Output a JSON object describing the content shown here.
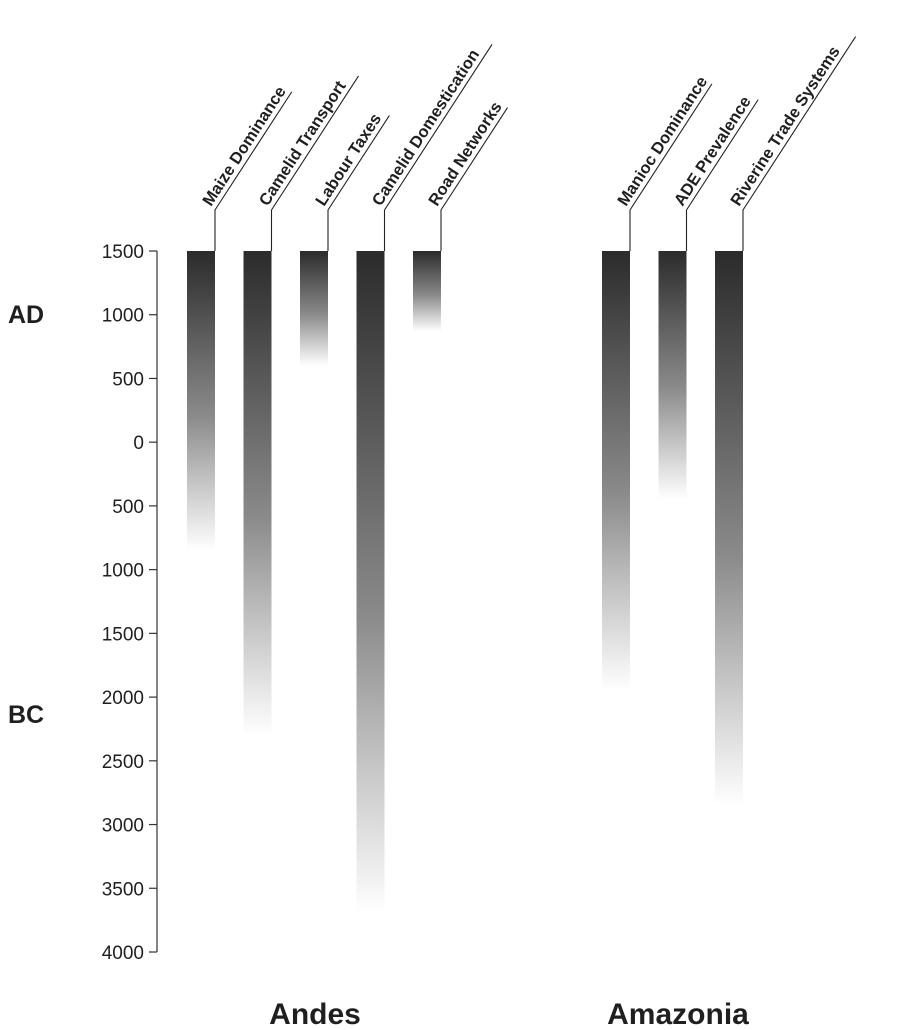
{
  "chart_data": {
    "type": "bar",
    "title": "",
    "ylabel": "",
    "ylim": [
      -4000,
      1500
    ],
    "y_ticks": [
      1500,
      1000,
      500,
      0,
      -500,
      -1000,
      -1500,
      -2000,
      -2500,
      -3000,
      -3500,
      -4000
    ],
    "y_tick_labels": [
      "1500",
      "1000",
      "500",
      "0",
      "500",
      "1000",
      "1500",
      "2000",
      "2500",
      "3000",
      "3500",
      "4000"
    ],
    "era_labels": {
      "ad": "AD",
      "bc": "BC"
    },
    "bar_color": "#2b2b2b",
    "groups": [
      {
        "name": "Andes",
        "bars": [
          {
            "label": "Maize Dominance",
            "start": -850,
            "end": 1500
          },
          {
            "label": "Camelid Transport",
            "start": -2300,
            "end": 1500
          },
          {
            "label": "Labour Taxes",
            "start": 600,
            "end": 1500
          },
          {
            "label": "Camelid Domestication",
            "start": -3700,
            "end": 1500
          },
          {
            "label": "Road Networks",
            "start": 870,
            "end": 1500
          }
        ]
      },
      {
        "name": "Amazonia",
        "bars": [
          {
            "label": "Manioc Dominance",
            "start": -1950,
            "end": 1500
          },
          {
            "label": "ADE Prevalence",
            "start": -450,
            "end": 1500
          },
          {
            "label": "Riverine Trade Systems",
            "start": -2850,
            "end": 1500
          }
        ]
      }
    ]
  }
}
